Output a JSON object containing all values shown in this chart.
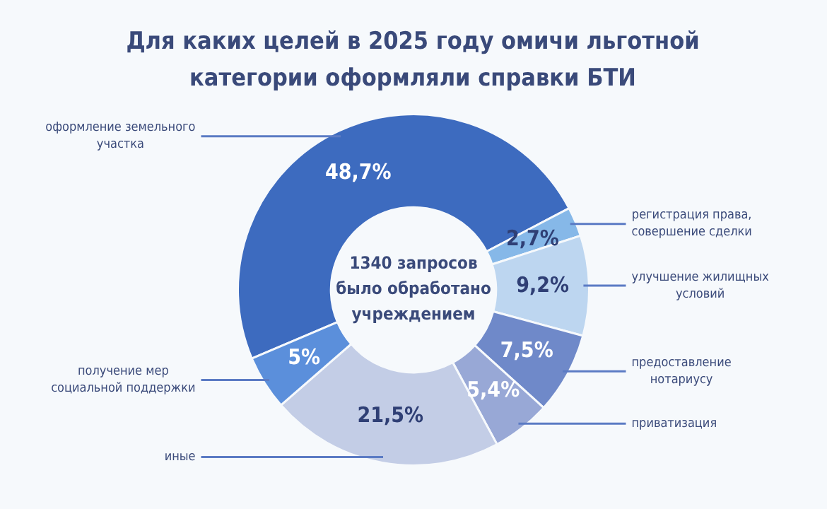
{
  "chart_data": {
    "type": "donut",
    "title": "Для каких целей в 2025 году омичи льготной категории оформляли справки БТИ",
    "categories": [
      "оформление земельного участка",
      "регистрация права, совершение сделки",
      "улучшение жилищных условий",
      "предоставление нотариусу",
      "приватизация",
      "иные",
      "получение мер социальной поддержки"
    ],
    "values": [
      48.7,
      2.7,
      9.2,
      7.5,
      5.4,
      21.5,
      5
    ],
    "value_labels": [
      "48,7%",
      "2,7%",
      "9,2%",
      "7,5%",
      "5,4%",
      "21,5%",
      "5%"
    ],
    "colors": [
      "#3d6bbf",
      "#86b8e8",
      "#bdd6f0",
      "#6f89c9",
      "#98a8d6",
      "#c3cde6",
      "#5b8fdb"
    ],
    "annotations": [
      "1340 запросов было обработано учреждением"
    ],
    "legend": false
  }
}
